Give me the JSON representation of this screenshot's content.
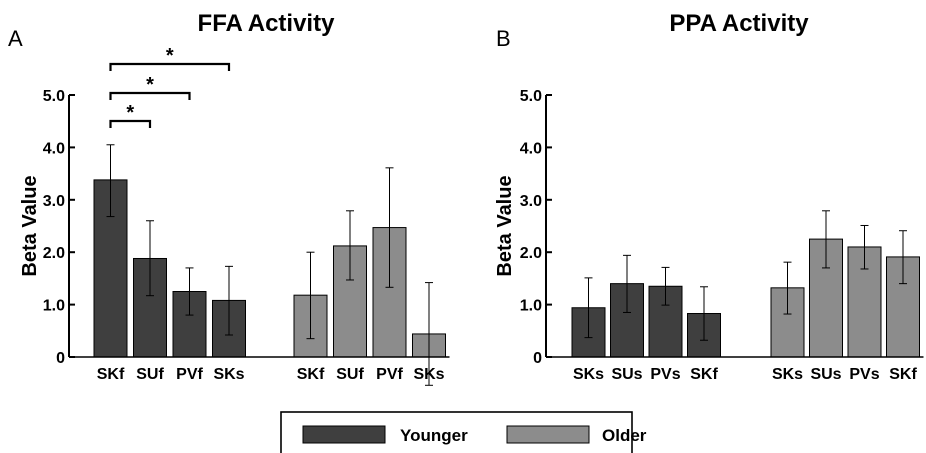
{
  "colors": {
    "younger": "#3f3f3f",
    "older": "#8c8c8c",
    "axis": "#000000",
    "background": "#ffffff"
  },
  "legend": {
    "placement": "bottom-center",
    "items": [
      {
        "label": "Younger",
        "color": "#3f3f3f"
      },
      {
        "label": "Older",
        "color": "#8c8c8c"
      }
    ]
  },
  "chart_data": [
    {
      "type": "bar",
      "panel_letter": "A",
      "title": "FFA Activity",
      "ylabel": "Beta Value",
      "xlabel": "",
      "ylim": [
        0,
        5.0
      ],
      "yticks": [
        "0",
        "1.0",
        "2.0",
        "3.0",
        "4.0",
        "5.0"
      ],
      "grid": false,
      "groups": [
        {
          "name": "Younger",
          "color": "#3f3f3f",
          "categories": [
            "SKf",
            "SUf",
            "PVf",
            "SKs"
          ],
          "values": [
            3.38,
            1.88,
            1.25,
            1.08
          ],
          "errors_low": [
            2.68,
            1.17,
            0.8,
            0.42
          ],
          "errors_high": [
            4.05,
            2.6,
            1.7,
            1.73
          ]
        },
        {
          "name": "Older",
          "color": "#8c8c8c",
          "categories": [
            "SKf",
            "SUf",
            "PVf",
            "SKs"
          ],
          "values": [
            1.18,
            2.12,
            2.47,
            0.44
          ],
          "errors_low": [
            0.35,
            1.47,
            1.33,
            -0.54
          ],
          "errors_high": [
            2.0,
            2.79,
            3.61,
            1.42
          ]
        }
      ],
      "significance": [
        {
          "from": 0,
          "to": 1,
          "label": "*"
        },
        {
          "from": 0,
          "to": 2,
          "label": "*"
        },
        {
          "from": 0,
          "to": 3,
          "label": "*"
        }
      ]
    },
    {
      "type": "bar",
      "panel_letter": "B",
      "title": "PPA Activity",
      "ylabel": "Beta Value",
      "xlabel": "",
      "ylim": [
        0,
        5.0
      ],
      "yticks": [
        "0",
        "1.0",
        "2.0",
        "3.0",
        "4.0",
        "5.0"
      ],
      "grid": false,
      "groups": [
        {
          "name": "Younger",
          "color": "#3f3f3f",
          "categories": [
            "SKs",
            "SUs",
            "PVs",
            "SKf"
          ],
          "values": [
            0.94,
            1.4,
            1.35,
            0.83
          ],
          "errors_low": [
            0.37,
            0.85,
            0.99,
            0.32
          ],
          "errors_high": [
            1.51,
            1.94,
            1.71,
            1.34
          ]
        },
        {
          "name": "Older",
          "color": "#8c8c8c",
          "categories": [
            "SKs",
            "SUs",
            "PVs",
            "SKf"
          ],
          "values": [
            1.32,
            2.25,
            2.1,
            1.91
          ],
          "errors_low": [
            0.82,
            1.7,
            1.68,
            1.4
          ],
          "errors_high": [
            1.81,
            2.79,
            2.51,
            2.41
          ]
        }
      ],
      "significance": []
    }
  ]
}
